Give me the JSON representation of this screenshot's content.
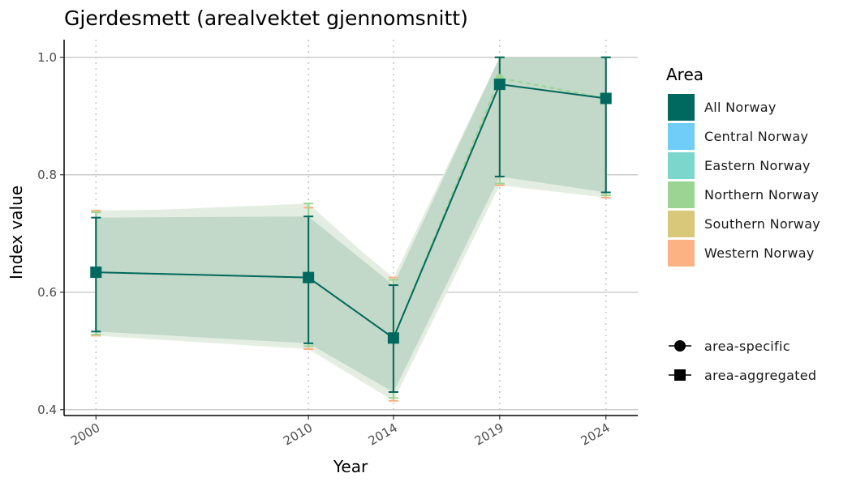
{
  "chart_data": {
    "type": "line",
    "title": "Gjerdesmett (arealvektet gjennomsnitt)",
    "xlabel": "Year",
    "ylabel": "Index value",
    "x": [
      2000,
      2010,
      2014,
      2019,
      2024
    ],
    "x_tick_labels": [
      "2000",
      "2010",
      "2014",
      "2019",
      "2024"
    ],
    "y_ticks": [
      0.4,
      0.6,
      0.8,
      1.0
    ],
    "y_tick_labels": [
      "0.4",
      "0.6",
      "0.8",
      "1.0"
    ],
    "ylim": [
      0.39,
      1.03
    ],
    "grid": "horizontal major lines, vertical dotted lines at data years",
    "legend_placement": "right",
    "legend": {
      "title": "Area",
      "areas": [
        {
          "name": "All Norway",
          "color": "#00695f"
        },
        {
          "name": "Central Norway",
          "color": "#6fcdf7"
        },
        {
          "name": "Eastern Norway",
          "color": "#7cd6cc"
        },
        {
          "name": "Northern Norway",
          "color": "#9bd493"
        },
        {
          "name": "Southern Norway",
          "color": "#d9c77a"
        },
        {
          "name": "Western Norway",
          "color": "#fcb282"
        }
      ],
      "shapes": [
        {
          "name": "area-specific",
          "shape": "circle"
        },
        {
          "name": "area-aggregated",
          "shape": "square"
        }
      ]
    },
    "series": [
      {
        "name": "All Norway",
        "color": "#00695f",
        "marker": "square",
        "values": [
          0.634,
          0.625,
          0.522,
          0.954,
          0.93
        ],
        "lower": [
          0.533,
          0.513,
          0.43,
          0.797,
          0.77
        ],
        "upper": [
          0.727,
          0.729,
          0.612,
          1.0,
          1.0
        ]
      },
      {
        "color": "#9bd493",
        "marker": "circle",
        "values": [
          0.634,
          0.625,
          0.522,
          0.965,
          0.93
        ],
        "lower": [
          0.528,
          0.508,
          0.42,
          0.785,
          0.765
        ],
        "upper": [
          0.736,
          0.751,
          0.621,
          1.0,
          1.0
        ]
      },
      {
        "color": "#fcb282",
        "marker": "circle",
        "values": [
          0.634,
          0.625,
          0.522,
          0.954,
          0.93
        ],
        "lower": [
          0.526,
          0.503,
          0.415,
          0.782,
          0.761
        ],
        "upper": [
          0.739,
          0.744,
          0.625,
          1.0,
          1.0
        ]
      }
    ]
  }
}
